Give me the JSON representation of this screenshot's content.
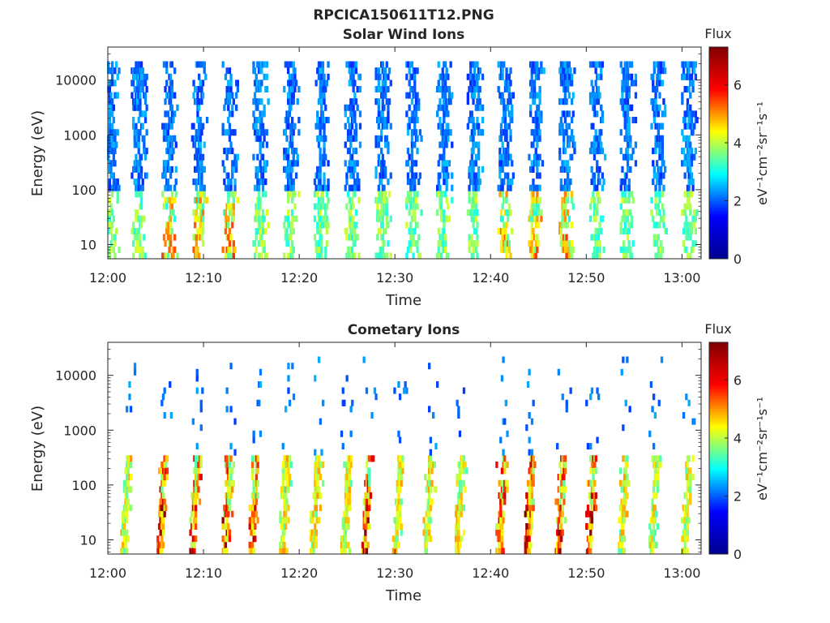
{
  "figure": {
    "title": "RPCICA150611T12.PNG"
  },
  "colorbar": {
    "label": "Flux",
    "unit": "eV⁻¹cm⁻²sr⁻¹s⁻¹",
    "range": [
      0,
      7.3
    ],
    "ticks": [
      0,
      2,
      4,
      6
    ],
    "colormap": "jet",
    "colors": [
      "#00008f",
      "#0000ff",
      "#00ffff",
      "#ffff00",
      "#ff0000",
      "#800000"
    ]
  },
  "chart_data": [
    {
      "type": "heatmap",
      "title": "Solar Wind Ions",
      "xlabel": "Time",
      "ylabel": "Energy (eV)",
      "x_range": [
        "12:00",
        "13:02"
      ],
      "x_ticks": [
        "12:00",
        "12:10",
        "12:20",
        "12:30",
        "12:40",
        "12:50",
        "13:00"
      ],
      "y_scale": "log",
      "y_range": [
        5.5,
        40000
      ],
      "y_ticks": [
        10,
        100,
        1000,
        10000
      ],
      "grid": false,
      "scan_period_min": 3.2,
      "bursts_min": [
        0.2,
        3.1,
        6.3,
        9.4,
        12.6,
        15.8,
        19.0,
        22.2,
        25.4,
        28.6,
        31.8,
        35.0,
        38.2,
        41.4,
        44.6,
        47.8,
        51.0,
        54.2,
        57.4,
        60.6
      ],
      "high_energy_band_eV": [
        100,
        20000
      ],
      "high_energy_flux": [
        1.2,
        2.3
      ],
      "low_energy_band_eV": [
        6,
        100
      ],
      "low_energy_flux": [
        2.8,
        5.6
      ],
      "peak_low_energy_bursts_min": [
        6.3,
        9.4,
        12.6,
        27.2,
        41.4,
        44.6,
        47.8
      ]
    },
    {
      "type": "heatmap",
      "title": "Cometary Ions",
      "xlabel": "Time",
      "ylabel": "Energy (eV)",
      "x_range": [
        "12:00",
        "13:02"
      ],
      "x_ticks": [
        "12:00",
        "12:10",
        "12:20",
        "12:30",
        "12:40",
        "12:50",
        "13:00"
      ],
      "y_scale": "log",
      "y_range": [
        5.5,
        40000
      ],
      "y_ticks": [
        10,
        100,
        1000,
        10000
      ],
      "grid": false,
      "scan_period_min": 3.2,
      "bursts_min": [
        2.0,
        5.8,
        9.2,
        12.6,
        15.4,
        18.6,
        21.8,
        25.0,
        27.2,
        30.4,
        33.6,
        36.8,
        41.2,
        44.2,
        47.4,
        50.6,
        54.0,
        57.2,
        60.6
      ],
      "core_band_eV": [
        6,
        350
      ],
      "core_flux": [
        3.2,
        6.8
      ],
      "sparse_high_energy_flux": [
        1.3,
        2.2
      ],
      "peak_bursts_min": [
        5.8,
        9.2,
        12.6,
        15.4,
        27.2,
        41.2,
        44.2,
        47.4,
        50.6
      ]
    }
  ]
}
